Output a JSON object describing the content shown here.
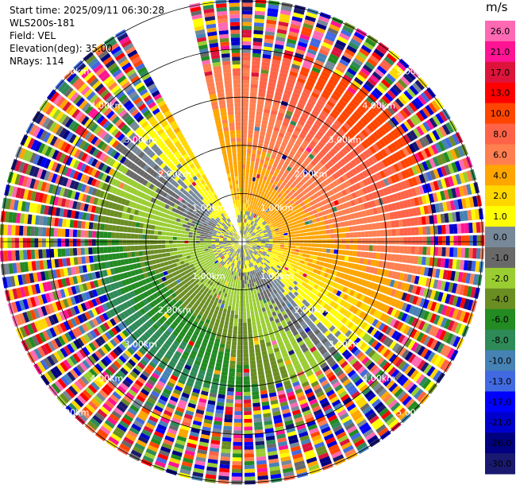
{
  "info": {
    "start_time": "Start time: 2025/09/11 06:30:28",
    "instrument": "WLS200s-181",
    "field": "Field: VEL",
    "elevation": "Elevation(deg): 35.00",
    "nrays": "NRays: 114"
  },
  "colorbar": {
    "unit": "m/s",
    "ticks": [
      "26.0",
      "21.0",
      "17.0",
      "13.0",
      "10.0",
      "8.0",
      "6.0",
      "4.0",
      "2.0",
      "1.0",
      "0.0",
      "-1.0",
      "-2.0",
      "-4.0",
      "-6.0",
      "-8.0",
      "-10.0",
      "-13.0",
      "-17.0",
      "-21.0",
      "-26.0",
      "-30.0"
    ],
    "colors": [
      "#ff69b4",
      "#ff1493",
      "#dc143c",
      "#ff0000",
      "#ff4500",
      "#ff6347",
      "#ff7f50",
      "#ffa500",
      "#ffd700",
      "#ffff00",
      "#778899",
      "#696969",
      "#9acd32",
      "#6b8e23",
      "#228b22",
      "#2e8b57",
      "#4682b4",
      "#4169e1",
      "#0000ff",
      "#0000cd",
      "#000080",
      "#191970"
    ]
  },
  "chart_data": {
    "type": "heatmap",
    "subtype": "radar PPI (plan position indicator)",
    "field": "VEL",
    "units": "m/s",
    "nrays": 114,
    "elevation_deg": 35.0,
    "max_range_km": 5.0,
    "range_ring_labels": [
      "1.00km",
      "2.00km",
      "3.00km",
      "4.00km",
      "5.00km"
    ],
    "range_rings_km": [
      1,
      2,
      3,
      4,
      5
    ],
    "missing_sector_deg": [
      330,
      346
    ],
    "velocity_structure": {
      "positive_max_azimuth_deg": 45,
      "negative_max_azimuth_deg": 210,
      "near_zero_axis_deg": [
        130,
        310
      ]
    }
  }
}
